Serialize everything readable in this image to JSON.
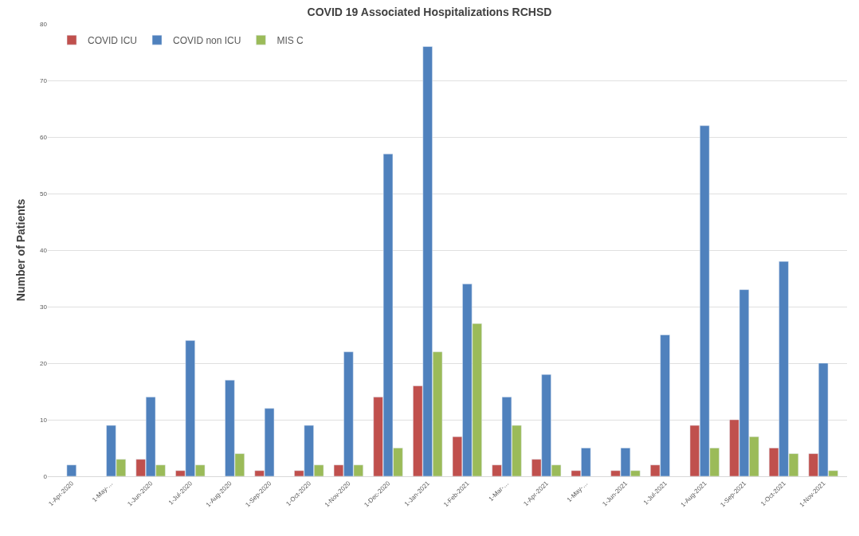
{
  "chart_data": {
    "type": "bar",
    "title": "COVID 19 Associated Hospitalizations RCHSD",
    "ylabel": "Number of Patients",
    "categories": [
      "1-Apr-2020",
      "1-May-…",
      "1-Jun-2020",
      "1-Jul-2020",
      "1-Aug-2020",
      "1-Sep-2020",
      "1-Oct-2020",
      "1-Nov-2020",
      "1-Dec-2020",
      "1-Jan-2021",
      "1-Feb-2021",
      "1-Mar-…",
      "1-Apr-2021",
      "1-May-…",
      "1-Jun-2021",
      "1-Jul-2021",
      "1-Aug-2021",
      "1-Sep-2021",
      "1-Oct-2021",
      "1-Nov-2021"
    ],
    "series": [
      {
        "name": "COVID ICU",
        "color": "#c0504d",
        "values": [
          null,
          null,
          3,
          1,
          null,
          1,
          1,
          2,
          14,
          16,
          7,
          2,
          3,
          1,
          1,
          2,
          9,
          10,
          5,
          4
        ]
      },
      {
        "name": "COVID non ICU",
        "color": "#4f81bd",
        "values": [
          2,
          9,
          14,
          24,
          17,
          12,
          9,
          22,
          57,
          76,
          34,
          14,
          18,
          5,
          5,
          25,
          62,
          33,
          38,
          20
        ]
      },
      {
        "name": "MIS C",
        "color": "#9bbb59",
        "values": [
          null,
          3,
          2,
          2,
          4,
          null,
          2,
          2,
          5,
          22,
          27,
          9,
          2,
          null,
          1,
          null,
          5,
          7,
          4,
          1
        ]
      }
    ],
    "ylim": [
      0,
      80
    ],
    "yticks": [
      0,
      10,
      20,
      30,
      40,
      50,
      60,
      70,
      80
    ],
    "grid": "y",
    "legend": "top left"
  }
}
